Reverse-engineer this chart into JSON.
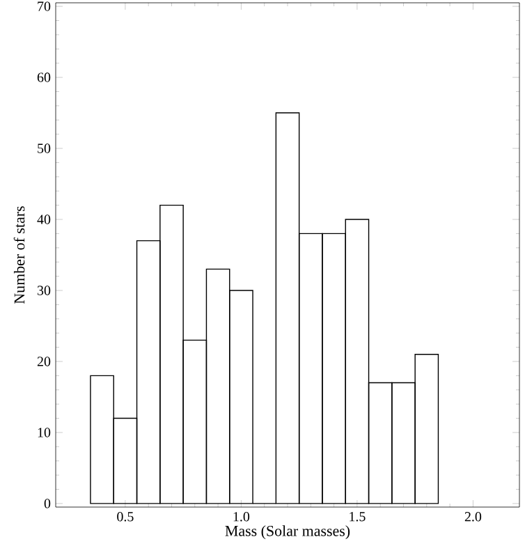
{
  "chart_data": {
    "type": "histogram",
    "xlabel": "Mass (Solar masses)",
    "ylabel": "Number of stars",
    "bins": [
      0.35,
      0.45,
      0.55,
      0.65,
      0.75,
      0.85,
      0.95,
      1.05,
      1.15,
      1.25,
      1.35,
      1.45,
      1.55,
      1.65,
      1.75,
      1.85
    ],
    "values": [
      18,
      12,
      37,
      42,
      23,
      33,
      30,
      0,
      55,
      38,
      38,
      40,
      17,
      17,
      21
    ],
    "color": "#000000",
    "xlim": [
      0.2,
      2.2
    ],
    "ylim": [
      -0.5,
      70.5
    ],
    "xticks": [
      0.5,
      {
        "value": 1,
        "label": "1.0"
      },
      1.5,
      {
        "value": 2,
        "label": "2.0"
      }
    ],
    "yticks": [
      0,
      10,
      20,
      30,
      40,
      50,
      60,
      70
    ],
    "grid": false
  }
}
